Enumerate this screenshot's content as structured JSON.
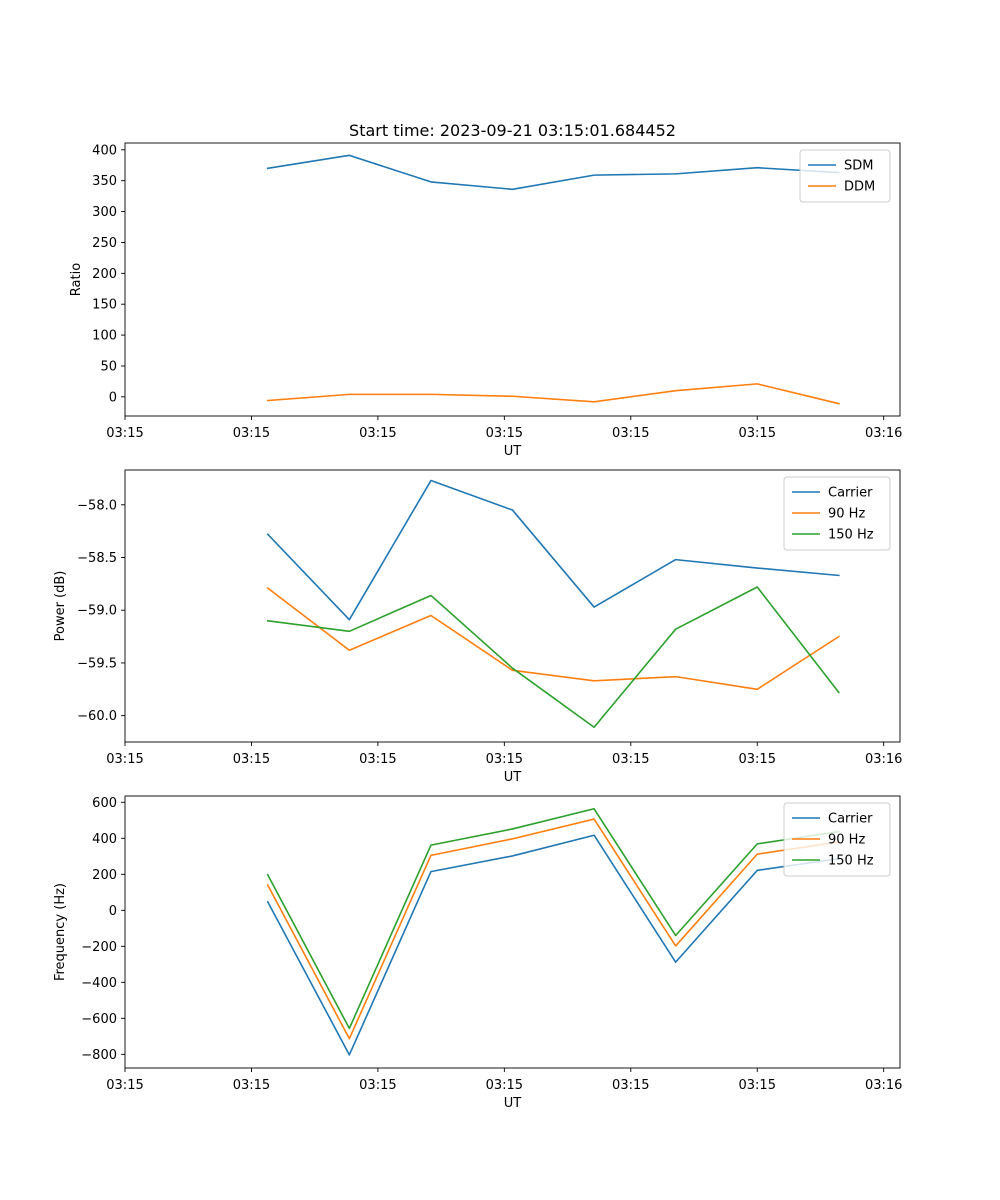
{
  "title": "Start time: 2023-09-21 03:15:01.684452",
  "colors": {
    "blue": "#1f77b4",
    "orange": "#ff7f0e",
    "green": "#2ca02c"
  },
  "chart_data": [
    {
      "type": "line",
      "title": "Start time: 2023-09-21 03:15:01.684452",
      "xlabel": "UT",
      "ylabel": "Ratio",
      "x": [
        1,
        2,
        3,
        4,
        5,
        6,
        7,
        8
      ],
      "xlim": [
        -0.75,
        8.75
      ],
      "xticks": [
        -0.75,
        0.8,
        2.35,
        3.9,
        5.45,
        7.0,
        8.55
      ],
      "xticklabels": [
        "03:15",
        "03:15",
        "03:15",
        "03:15",
        "03:15",
        "03:15",
        "03:16"
      ],
      "ylim": [
        -31,
        411
      ],
      "yticks": [
        0,
        50,
        100,
        150,
        200,
        250,
        300,
        350,
        400
      ],
      "yticklabels": [
        "0",
        "50",
        "100",
        "150",
        "200",
        "250",
        "300",
        "350",
        "400"
      ],
      "legend_position": "top-right",
      "series": [
        {
          "name": "SDM",
          "color": "#1f77b4",
          "values": [
            370,
            391,
            348,
            336,
            359,
            361,
            371,
            363
          ]
        },
        {
          "name": "DDM",
          "color": "#ff7f0e",
          "values": [
            -6,
            4,
            4,
            1,
            -8,
            10,
            21,
            -11
          ]
        }
      ]
    },
    {
      "type": "line",
      "title": "",
      "xlabel": "UT",
      "ylabel": "Power (dB)",
      "x": [
        1,
        2,
        3,
        4,
        5,
        6,
        7,
        8
      ],
      "xlim": [
        -0.75,
        8.75
      ],
      "xticks": [
        -0.75,
        0.8,
        2.35,
        3.9,
        5.45,
        7.0,
        8.55
      ],
      "xticklabels": [
        "03:15",
        "03:15",
        "03:15",
        "03:15",
        "03:15",
        "03:15",
        "03:16"
      ],
      "ylim": [
        -60.25,
        -57.67
      ],
      "yticks": [
        -60.0,
        -59.5,
        -59.0,
        -58.5,
        -58.0
      ],
      "yticklabels": [
        "−60.0",
        "−59.5",
        "−59.0",
        "−58.5",
        "−58.0"
      ],
      "legend_position": "top-right",
      "series": [
        {
          "name": "Carrier",
          "color": "#1f77b4",
          "values": [
            -58.28,
            -59.09,
            -57.77,
            -58.05,
            -58.97,
            -58.52,
            -58.6,
            -58.67
          ]
        },
        {
          "name": "90 Hz",
          "color": "#ff7f0e",
          "values": [
            -58.79,
            -59.38,
            -59.05,
            -59.57,
            -59.67,
            -59.63,
            -59.75,
            -59.25
          ]
        },
        {
          "name": "150 Hz",
          "color": "#2ca02c",
          "values": [
            -59.1,
            -59.2,
            -58.86,
            -59.55,
            -60.11,
            -59.18,
            -58.78,
            -59.78
          ]
        }
      ]
    },
    {
      "type": "line",
      "title": "",
      "xlabel": "UT",
      "ylabel": "Frequency (Hz)",
      "x": [
        1,
        2,
        3,
        4,
        5,
        6,
        7,
        8
      ],
      "xlim": [
        -0.75,
        8.75
      ],
      "xticks": [
        -0.75,
        0.8,
        2.35,
        3.9,
        5.45,
        7.0,
        8.55
      ],
      "xticklabels": [
        "03:15",
        "03:15",
        "03:15",
        "03:15",
        "03:15",
        "03:15",
        "03:16"
      ],
      "ylim": [
        -876,
        635
      ],
      "yticks": [
        -800,
        -600,
        -400,
        -200,
        0,
        200,
        400,
        600
      ],
      "yticklabels": [
        "−800",
        "−600",
        "−400",
        "−200",
        "0",
        "200",
        "400",
        "600"
      ],
      "legend_position": "top-right",
      "series": [
        {
          "name": "Carrier",
          "color": "#1f77b4",
          "values": [
            47,
            -803,
            215,
            302,
            417,
            -288,
            222,
            287
          ]
        },
        {
          "name": "90 Hz",
          "color": "#ff7f0e",
          "values": [
            140,
            -713,
            305,
            397,
            507,
            -198,
            312,
            380
          ]
        },
        {
          "name": "150 Hz",
          "color": "#2ca02c",
          "values": [
            197,
            -656,
            362,
            452,
            564,
            -140,
            369,
            437
          ]
        }
      ]
    }
  ]
}
